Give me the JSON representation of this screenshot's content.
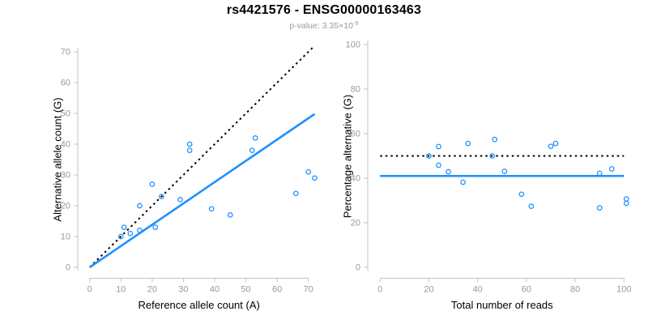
{
  "header": {
    "title": "rs4421576 - ENSG00000163463",
    "p_value_label": "p-value: 3.35×10",
    "p_value_exponent": "-9"
  },
  "colors": {
    "accent_blue": "#1E90FF",
    "line_black": "#000000",
    "axis_line": "#C3C3C3",
    "tick_label": "#999999",
    "subtitle": "#999999",
    "title": "#000000",
    "background": "#FFFFFF"
  },
  "chart_data": [
    {
      "type": "scatter",
      "name": "allele-count-scatter",
      "xlabel": "Reference allele count (A)",
      "ylabel": "Alternative allele count (G)",
      "xlim": [
        0,
        70
      ],
      "ylim": [
        0,
        70
      ],
      "xticks": [
        0,
        10,
        20,
        30,
        40,
        50,
        60,
        70
      ],
      "yticks": [
        0,
        10,
        20,
        30,
        40,
        50,
        60,
        70
      ],
      "grid": false,
      "legend": false,
      "point_color": "#1E90FF",
      "points": [
        [
          10,
          10
        ],
        [
          11,
          13
        ],
        [
          13,
          11
        ],
        [
          16,
          12
        ],
        [
          16,
          20
        ],
        [
          20,
          27
        ],
        [
          21,
          13
        ],
        [
          23,
          23
        ],
        [
          29,
          22
        ],
        [
          32,
          38
        ],
        [
          32,
          40
        ],
        [
          39,
          19
        ],
        [
          45,
          17
        ],
        [
          52,
          38
        ],
        [
          53,
          42
        ],
        [
          66,
          24
        ],
        [
          70,
          31
        ],
        [
          72,
          29
        ]
      ],
      "lines": [
        {
          "name": "identity-line",
          "style": "dotted",
          "color": "#000000",
          "from": [
            0,
            0
          ],
          "to": [
            71.5,
            71.5
          ]
        },
        {
          "name": "fit-line",
          "style": "solid",
          "color": "#1E90FF",
          "from": [
            0,
            0
          ],
          "to": [
            72,
            49.8
          ]
        }
      ]
    },
    {
      "type": "scatter",
      "name": "percentage-alternative-scatter",
      "xlabel": "Total number of reads",
      "ylabel": "Percentage alternative (G)",
      "xlim": [
        0,
        100
      ],
      "ylim": [
        0,
        100
      ],
      "xticks": [
        0,
        20,
        40,
        60,
        80,
        100
      ],
      "yticks": [
        0,
        20,
        40,
        60,
        80,
        100
      ],
      "grid": false,
      "legend": false,
      "point_color": "#1E90FF",
      "points": [
        [
          20,
          50
        ],
        [
          24,
          54.2
        ],
        [
          24,
          45.8
        ],
        [
          28,
          42.9
        ],
        [
          34,
          38.2
        ],
        [
          36,
          55.6
        ],
        [
          46,
          50
        ],
        [
          47,
          57.4
        ],
        [
          51,
          43.1
        ],
        [
          58,
          32.8
        ],
        [
          62,
          27.4
        ],
        [
          70,
          54.3
        ],
        [
          72,
          55.6
        ],
        [
          90,
          42.2
        ],
        [
          90,
          26.7
        ],
        [
          95,
          44.2
        ],
        [
          101,
          30.7
        ],
        [
          101,
          28.7
        ]
      ],
      "lines": [
        {
          "name": "expected-50pct-line",
          "style": "dotted",
          "color": "#000000",
          "from": [
            0,
            50
          ],
          "to": [
            100,
            50
          ]
        },
        {
          "name": "mean-percentage-line",
          "style": "solid",
          "color": "#1E90FF",
          "from": [
            0,
            41
          ],
          "to": [
            100,
            41
          ]
        }
      ]
    }
  ]
}
